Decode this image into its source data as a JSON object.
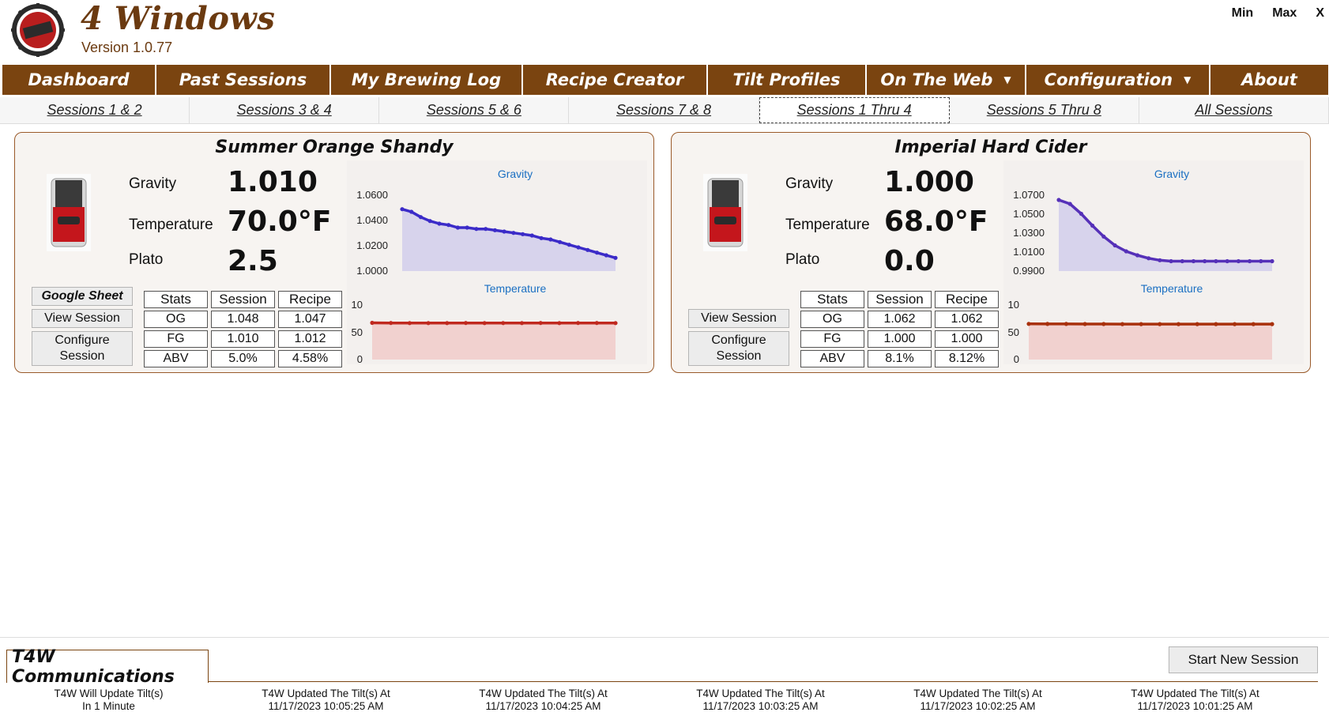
{
  "app": {
    "title": "4 Windows",
    "version": "Version 1.0.77",
    "window_controls": [
      "Min",
      "Max",
      "X"
    ]
  },
  "nav": {
    "items": [
      {
        "label": "Dashboard",
        "dropdown": false
      },
      {
        "label": "Past Sessions",
        "dropdown": false
      },
      {
        "label": "My Brewing Log",
        "dropdown": false
      },
      {
        "label": "Recipe Creator",
        "dropdown": false
      },
      {
        "label": "Tilt Profiles",
        "dropdown": false
      },
      {
        "label": "On The Web",
        "dropdown": true
      },
      {
        "label": "Configuration",
        "dropdown": true
      },
      {
        "label": "About",
        "dropdown": false
      }
    ]
  },
  "session_tabs": {
    "items": [
      "Sessions 1 & 2",
      "Sessions 3 & 4",
      "Sessions 5 & 6",
      "Sessions 7 & 8",
      "Sessions 1 Thru 4",
      "Sessions 5 Thru 8",
      "All Sessions"
    ],
    "active": "Sessions 1 Thru 4"
  },
  "panels": [
    {
      "title": "Summer Orange Shandy",
      "gravity_label": "Gravity",
      "gravity": "1.010",
      "temperature_label": "Temperature",
      "temperature": "70.0°F",
      "plato_label": "Plato",
      "plato": "2.5",
      "buttons": {
        "google_sheet": "Google Sheet",
        "view_session": "View Session",
        "configure_session": "Configure Session"
      },
      "stats": {
        "headers": [
          "Stats",
          "Session",
          "Recipe"
        ],
        "rows": [
          [
            "OG",
            "1.048",
            "1.047"
          ],
          [
            "FG",
            "1.010",
            "1.012"
          ],
          [
            "ABV",
            "5.0%",
            "4.58%"
          ]
        ]
      },
      "gravity_chart": {
        "label": "Gravity",
        "ticks": [
          "1.0600",
          "1.0400",
          "1.0200",
          "1.0000"
        ],
        "ylim": [
          1.0,
          1.06
        ],
        "values": [
          1.047,
          1.045,
          1.041,
          1.038,
          1.036,
          1.035,
          1.033,
          1.033,
          1.032,
          1.032,
          1.031,
          1.03,
          1.029,
          1.028,
          1.027,
          1.025,
          1.024,
          1.022,
          1.02,
          1.018,
          1.016,
          1.014,
          1.012,
          1.01
        ],
        "color": "#3b2bc8"
      },
      "temp_chart": {
        "label": "Temperature",
        "ticks": [
          "10",
          "50",
          "0"
        ],
        "values": [
          70.5,
          70.1,
          70.0,
          70.0,
          70.0,
          70.1,
          70.0,
          70.0,
          70.0,
          70.1,
          70.0,
          70.1,
          70.1,
          70.0
        ],
        "color": "#c0291f"
      }
    },
    {
      "title": "Imperial Hard Cider",
      "gravity_label": "Gravity",
      "gravity": "1.000",
      "temperature_label": "Temperature",
      "temperature": "68.0°F",
      "plato_label": "Plato",
      "plato": "0.0",
      "buttons": {
        "google_sheet": "",
        "view_session": "View Session",
        "configure_session": "Configure Session"
      },
      "stats": {
        "headers": [
          "Stats",
          "Session",
          "Recipe"
        ],
        "rows": [
          [
            "OG",
            "1.062",
            "1.062"
          ],
          [
            "FG",
            "1.000",
            "1.000"
          ],
          [
            "ABV",
            "8.1%",
            "8.12%"
          ]
        ]
      },
      "gravity_chart": {
        "label": "Gravity",
        "ticks": [
          "1.0700",
          "1.0500",
          "1.0300",
          "1.0100",
          "0.9900"
        ],
        "ylim": [
          0.99,
          1.07
        ],
        "values": [
          1.062,
          1.058,
          1.048,
          1.036,
          1.025,
          1.016,
          1.01,
          1.006,
          1.003,
          1.001,
          1.0,
          1.0,
          1.0,
          1.0,
          1.0,
          1.0,
          1.0,
          1.0,
          1.0,
          1.0
        ],
        "color": "#5530b8"
      },
      "temp_chart": {
        "label": "Temperature",
        "ticks": [
          "10",
          "50",
          "0"
        ],
        "values": [
          68.5,
          68.4,
          68.3,
          68.2,
          68.2,
          68.1,
          68.1,
          68.0,
          68.0,
          68.0,
          68.0,
          68.0,
          68.0,
          68.0
        ],
        "color": "#a8300c"
      }
    }
  ],
  "comms": {
    "title": "T4W Communications",
    "start_button": "Start New Session",
    "messages": [
      {
        "line1": "T4W Will Update Tilt(s)",
        "line2": "In 1 Minute"
      },
      {
        "line1": "T4W Updated The Tilt(s) At",
        "line2": "11/17/2023 10:05:25 AM"
      },
      {
        "line1": "T4W Updated The Tilt(s) At",
        "line2": "11/17/2023 10:04:25 AM"
      },
      {
        "line1": "T4W Updated The Tilt(s) At",
        "line2": "11/17/2023 10:03:25 AM"
      },
      {
        "line1": "T4W Updated The Tilt(s) At",
        "line2": "11/17/2023 10:02:25 AM"
      },
      {
        "line1": "T4W Updated The Tilt(s) At",
        "line2": "11/17/2023 10:01:25 AM"
      }
    ]
  },
  "colors": {
    "brand_brown": "#7a4410",
    "panel_border": "#9a5a2a"
  }
}
